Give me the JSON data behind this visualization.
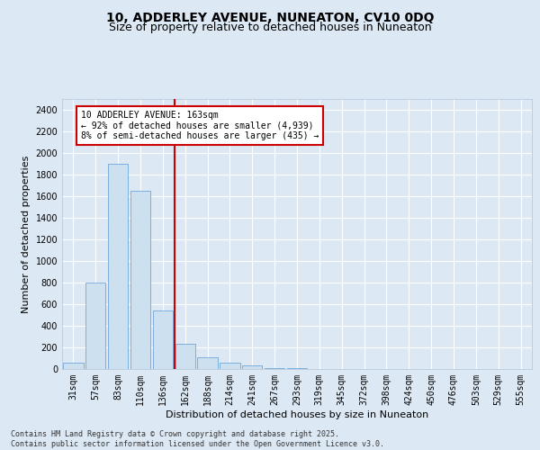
{
  "title": "10, ADDERLEY AVENUE, NUNEATON, CV10 0DQ",
  "subtitle": "Size of property relative to detached houses in Nuneaton",
  "xlabel": "Distribution of detached houses by size in Nuneaton",
  "ylabel": "Number of detached properties",
  "bin_labels": [
    "31sqm",
    "57sqm",
    "83sqm",
    "110sqm",
    "136sqm",
    "162sqm",
    "188sqm",
    "214sqm",
    "241sqm",
    "267sqm",
    "293sqm",
    "319sqm",
    "345sqm",
    "372sqm",
    "398sqm",
    "424sqm",
    "450sqm",
    "476sqm",
    "503sqm",
    "529sqm",
    "555sqm"
  ],
  "bar_values": [
    55,
    800,
    1900,
    1650,
    540,
    235,
    110,
    55,
    30,
    10,
    5,
    2,
    1,
    0,
    0,
    0,
    0,
    0,
    0,
    0,
    0
  ],
  "bar_color": "#cce0f0",
  "bar_edge_color": "#5b9bd5",
  "ylim": [
    0,
    2500
  ],
  "yticks": [
    0,
    200,
    400,
    600,
    800,
    1000,
    1200,
    1400,
    1600,
    1800,
    2000,
    2200,
    2400
  ],
  "property_bin_index": 5,
  "red_line_color": "#cc0000",
  "annotation_text": "10 ADDERLEY AVENUE: 163sqm\n← 92% of detached houses are smaller (4,939)\n8% of semi-detached houses are larger (435) →",
  "annotation_box_color": "#cc0000",
  "bg_color": "#dce8f4",
  "grid_color": "#ffffff",
  "footer_text": "Contains HM Land Registry data © Crown copyright and database right 2025.\nContains public sector information licensed under the Open Government Licence v3.0.",
  "title_fontsize": 10,
  "subtitle_fontsize": 9,
  "annotation_fontsize": 7,
  "axis_label_fontsize": 8,
  "tick_fontsize": 7,
  "footer_fontsize": 6
}
